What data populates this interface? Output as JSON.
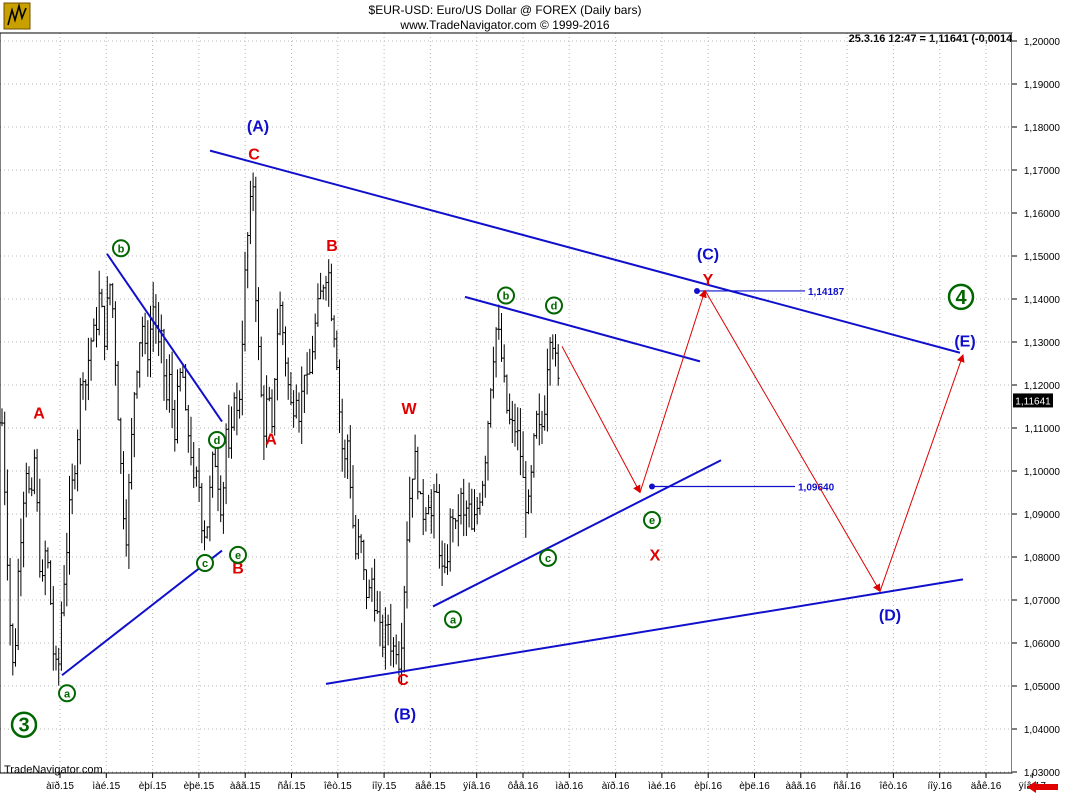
{
  "header": {
    "line1": "$EUR-USD:  Euro/US Dollar @ FOREX  (Daily bars)",
    "line2": "www.TradeNavigator.com © 1999-2016"
  },
  "readout": "25.3.16 12:47 = 1,11641 (-0,00148)",
  "credit": "TradeNavigator.com",
  "colors": {
    "price": "#000000",
    "trend": "#1010cc",
    "projection": "#dd0000",
    "wave_green": "#006600",
    "wave_red": "#e00000",
    "wave_blue": "#1010cc"
  },
  "chart_data": {
    "type": "bar",
    "subtype": "ohlc-daily",
    "y_axis": {
      "range": [
        1.03,
        1.205
      ],
      "ticks": [
        "1,20000",
        "1,19000",
        "1,18000",
        "1,17000",
        "1,16000",
        "1,15000",
        "1,14000",
        "1,13000",
        "1,12000",
        "1,11000",
        "1,10000",
        "1,09000",
        "1,08000",
        "1,07000",
        "1,06000",
        "1,05000",
        "1,04000",
        "1,03000"
      ],
      "current_value_label": "1,11641"
    },
    "x_axis": {
      "ticks": [
        "àïð.15",
        "ìàé.15",
        "èþí.15",
        "èþë.15",
        "àâã.15",
        "ñåí.15",
        "îêò.15",
        "íîÿ.15",
        "äåê.15",
        "ÿíâ.16",
        "ôåâ.16",
        "ìàð.16",
        "àïð.16",
        "ìàé.16",
        "èþí.16",
        "èþë.16",
        "àâã.16",
        "ñåí.16",
        "îêò.16",
        "íîÿ.16",
        "äåê.16",
        "ÿíâ.17"
      ]
    },
    "price_path": [
      [
        0,
        1.122
      ],
      [
        5,
        1.095
      ],
      [
        10,
        1.065
      ],
      [
        14,
        1.05
      ],
      [
        17,
        1.072
      ],
      [
        22,
        1.09
      ],
      [
        26,
        1.102
      ],
      [
        31,
        1.09
      ],
      [
        35,
        1.105
      ],
      [
        38,
        1.085
      ],
      [
        42,
        1.072
      ],
      [
        46,
        1.083
      ],
      [
        50,
        1.072
      ],
      [
        54,
        1.055
      ],
      [
        58,
        1.052
      ],
      [
        62,
        1.07
      ],
      [
        66,
        1.08
      ],
      [
        70,
        1.092
      ],
      [
        74,
        1.1
      ],
      [
        78,
        1.11
      ],
      [
        82,
        1.125
      ],
      [
        86,
        1.12
      ],
      [
        90,
        1.13
      ],
      [
        95,
        1.132
      ],
      [
        100,
        1.142
      ],
      [
        104,
        1.13
      ],
      [
        108,
        1.14
      ],
      [
        111,
        1.145
      ],
      [
        115,
        1.128
      ],
      [
        119,
        1.11
      ],
      [
        122,
        1.095
      ],
      [
        126,
        1.085
      ],
      [
        130,
        1.1
      ],
      [
        134,
        1.118
      ],
      [
        138,
        1.128
      ],
      [
        142,
        1.135
      ],
      [
        146,
        1.125
      ],
      [
        150,
        1.132
      ],
      [
        154,
        1.14
      ],
      [
        158,
        1.128
      ],
      [
        162,
        1.13
      ],
      [
        166,
        1.115
      ],
      [
        170,
        1.122
      ],
      [
        174,
        1.108
      ],
      [
        178,
        1.118
      ],
      [
        182,
        1.125
      ],
      [
        186,
        1.11
      ],
      [
        190,
        1.108
      ],
      [
        194,
        1.095
      ],
      [
        198,
        1.1
      ],
      [
        202,
        1.088
      ],
      [
        206,
        1.085
      ],
      [
        210,
        1.095
      ],
      [
        214,
        1.105
      ],
      [
        218,
        1.098
      ],
      [
        222,
        1.09
      ],
      [
        226,
        1.11
      ],
      [
        230,
        1.1
      ],
      [
        234,
        1.12
      ],
      [
        238,
        1.11
      ],
      [
        242,
        1.13
      ],
      [
        246,
        1.15
      ],
      [
        250,
        1.16
      ],
      [
        253,
        1.168
      ],
      [
        256,
        1.14
      ],
      [
        260,
        1.12
      ],
      [
        264,
        1.11
      ],
      [
        268,
        1.118
      ],
      [
        272,
        1.108
      ],
      [
        276,
        1.13
      ],
      [
        280,
        1.138
      ],
      [
        284,
        1.13
      ],
      [
        288,
        1.12
      ],
      [
        292,
        1.113
      ],
      [
        296,
        1.12
      ],
      [
        300,
        1.112
      ],
      [
        304,
        1.125
      ],
      [
        308,
        1.118
      ],
      [
        312,
        1.128
      ],
      [
        316,
        1.135
      ],
      [
        320,
        1.14
      ],
      [
        324,
        1.145
      ],
      [
        328,
        1.148
      ],
      [
        332,
        1.136
      ],
      [
        336,
        1.13
      ],
      [
        340,
        1.112
      ],
      [
        344,
        1.1
      ],
      [
        348,
        1.108
      ],
      [
        352,
        1.09
      ],
      [
        356,
        1.08
      ],
      [
        360,
        1.085
      ],
      [
        364,
        1.075
      ],
      [
        368,
        1.07
      ],
      [
        372,
        1.075
      ],
      [
        376,
        1.068
      ],
      [
        380,
        1.062
      ],
      [
        384,
        1.06
      ],
      [
        388,
        1.065
      ],
      [
        392,
        1.058
      ],
      [
        396,
        1.06
      ],
      [
        400,
        1.055
      ],
      [
        404,
        1.072
      ],
      [
        408,
        1.09
      ],
      [
        412,
        1.1
      ],
      [
        416,
        1.103
      ],
      [
        420,
        1.092
      ],
      [
        424,
        1.09
      ],
      [
        428,
        1.095
      ],
      [
        432,
        1.088
      ],
      [
        436,
        1.097
      ],
      [
        440,
        1.08
      ],
      [
        444,
        1.073
      ],
      [
        448,
        1.082
      ],
      [
        452,
        1.092
      ],
      [
        456,
        1.085
      ],
      [
        460,
        1.095
      ],
      [
        464,
        1.088
      ],
      [
        468,
        1.093
      ],
      [
        472,
        1.085
      ],
      [
        476,
        1.09
      ],
      [
        480,
        1.095
      ],
      [
        484,
        1.1
      ],
      [
        488,
        1.112
      ],
      [
        492,
        1.125
      ],
      [
        496,
        1.133
      ],
      [
        500,
        1.13
      ],
      [
        504,
        1.12
      ],
      [
        508,
        1.112
      ],
      [
        512,
        1.11
      ],
      [
        516,
        1.11
      ],
      [
        520,
        1.105
      ],
      [
        524,
        1.095
      ],
      [
        528,
        1.09
      ],
      [
        532,
        1.1
      ],
      [
        536,
        1.112
      ],
      [
        540,
        1.108
      ],
      [
        544,
        1.113
      ],
      [
        548,
        1.128
      ],
      [
        551,
        1.135
      ],
      [
        554,
        1.128
      ],
      [
        557,
        1.122
      ],
      [
        560,
        1.117
      ]
    ],
    "trendlines": [
      {
        "x1": 210,
        "y1": 1.1745,
        "x2": 960,
        "y2": 1.1275
      },
      {
        "x1": 107,
        "y1": 1.1505,
        "x2": 222,
        "y2": 1.1115
      },
      {
        "x1": 62,
        "y1": 1.0525,
        "x2": 222,
        "y2": 1.0815
      },
      {
        "x1": 465,
        "y1": 1.1405,
        "x2": 700,
        "y2": 1.1255
      },
      {
        "x1": 433,
        "y1": 1.0685,
        "x2": 721,
        "y2": 1.1025
      },
      {
        "x1": 326,
        "y1": 1.0505,
        "x2": 963,
        "y2": 1.0748
      }
    ],
    "projection": [
      [
        562,
        1.129
      ],
      [
        640,
        1.095
      ],
      [
        705,
        1.142
      ],
      [
        880,
        1.072
      ],
      [
        963,
        1.127
      ]
    ],
    "levels": [
      {
        "label": "1,14187",
        "x": 697,
        "value": 1.14187,
        "x_end": 805
      },
      {
        "label": "1,09640",
        "x": 652,
        "value": 1.0964,
        "x_end": 795
      }
    ],
    "wave_labels": [
      {
        "text": "(A)",
        "style": "blue",
        "x": 258,
        "y": 1.1803
      },
      {
        "text": "C",
        "style": "red",
        "x": 254,
        "y": 1.1738
      },
      {
        "text": "B",
        "style": "red",
        "x": 332,
        "y": 1.1526
      },
      {
        "text": "A",
        "style": "red",
        "x": 39,
        "y": 1.1136
      },
      {
        "text": "A",
        "style": "red",
        "x": 271,
        "y": 1.1076
      },
      {
        "text": "W",
        "style": "red",
        "x": 409,
        "y": 1.1146
      },
      {
        "text": "B",
        "style": "red",
        "x": 238,
        "y": 1.0776
      },
      {
        "text": "C",
        "style": "red",
        "x": 403,
        "y": 1.0516
      },
      {
        "text": "(B)",
        "style": "blue",
        "x": 405,
        "y": 1.0436
      },
      {
        "text": "(C)",
        "style": "blue",
        "x": 708,
        "y": 1.1506
      },
      {
        "text": "Y",
        "style": "red",
        "x": 708,
        "y": 1.1446
      },
      {
        "text": "X",
        "style": "red",
        "x": 655,
        "y": 1.0806
      },
      {
        "text": "(D)",
        "style": "blue",
        "x": 890,
        "y": 1.0666
      },
      {
        "text": "(E)",
        "style": "blue",
        "x": 965,
        "y": 1.1303
      }
    ],
    "wave_circles": [
      {
        "text": "b",
        "x": 121,
        "y": 1.1518
      },
      {
        "text": "d",
        "x": 217,
        "y": 1.1072
      },
      {
        "text": "e",
        "x": 238,
        "y": 1.0805
      },
      {
        "text": "c",
        "x": 205,
        "y": 1.0786
      },
      {
        "text": "a",
        "x": 67,
        "y": 1.0483
      },
      {
        "text": "b",
        "x": 506,
        "y": 1.1408
      },
      {
        "text": "d",
        "x": 554,
        "y": 1.1385
      },
      {
        "text": "c",
        "x": 548,
        "y": 1.0798
      },
      {
        "text": "a",
        "x": 453,
        "y": 1.0655
      },
      {
        "text": "e",
        "x": 652,
        "y": 1.0886
      }
    ],
    "big_circles": [
      {
        "text": "3",
        "x": 24,
        "y": 1.041
      },
      {
        "text": "4",
        "x": 961,
        "y": 1.1405
      }
    ]
  }
}
